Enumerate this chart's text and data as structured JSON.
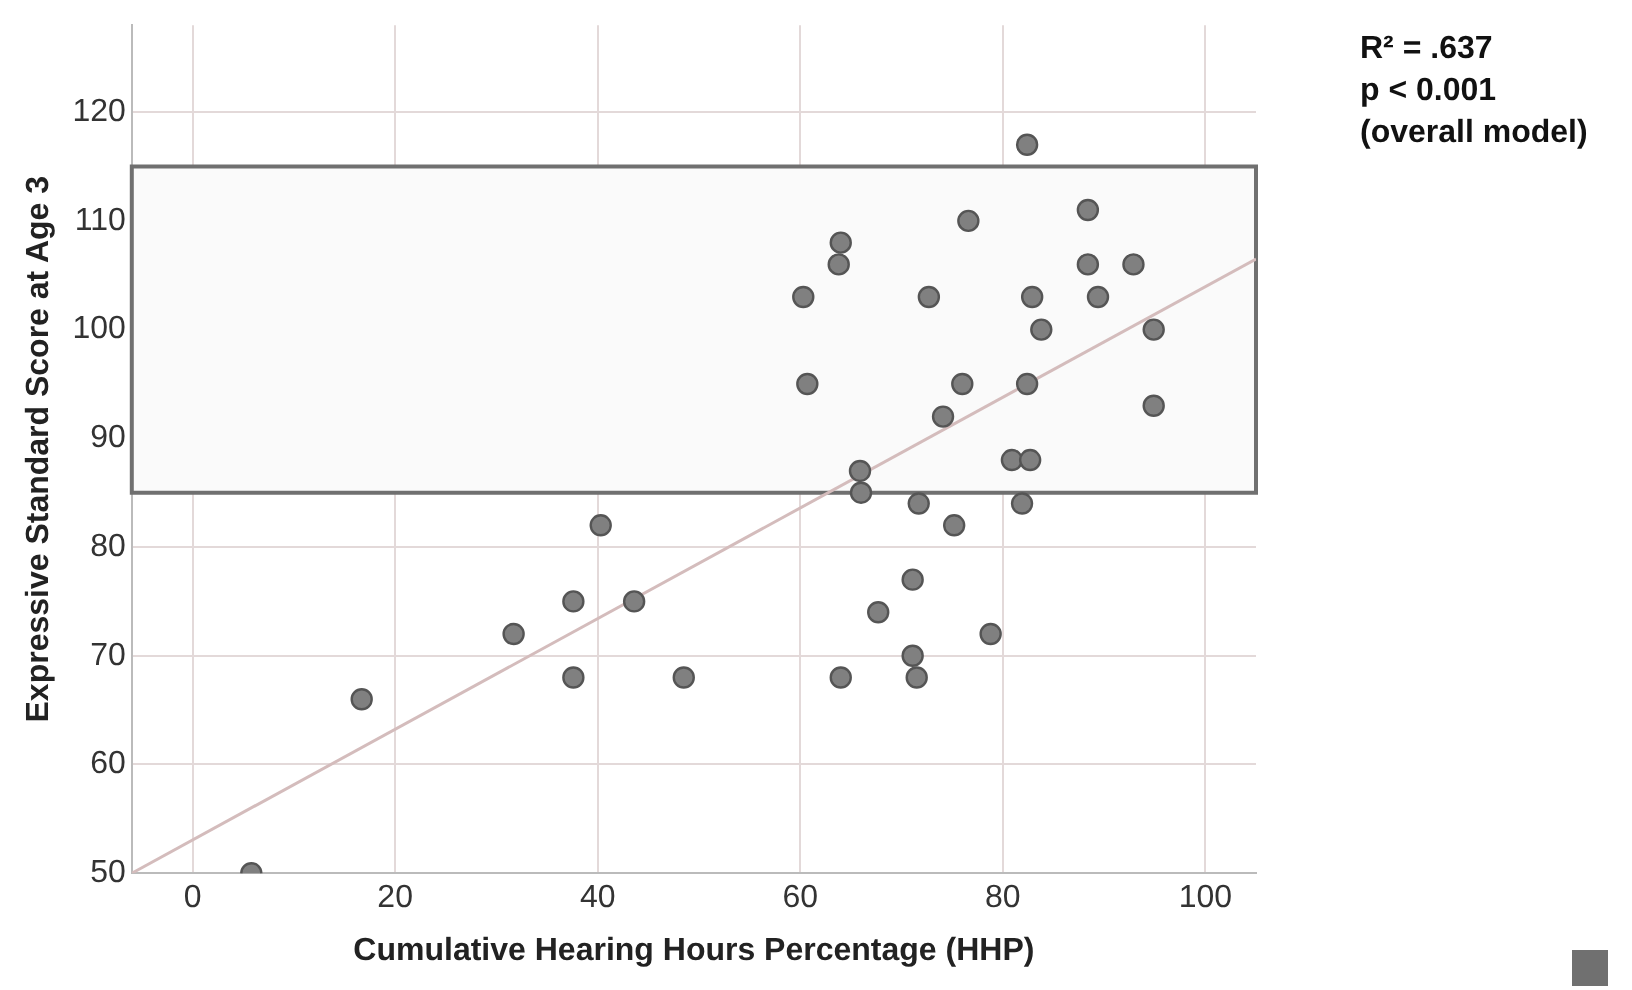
{
  "chart_data": {
    "type": "scatter",
    "xlabel": "Cumulative Hearing Hours Percentage (HHP)",
    "ylabel": "Expressive Standard Score at Age 3",
    "annotations": [
      "R² = .637",
      "p < 0.001",
      "(overall model)"
    ],
    "xlim": [
      -6,
      105
    ],
    "xticks": [
      0,
      20,
      40,
      60,
      80,
      100
    ],
    "ylim": [
      50,
      128
    ],
    "yticks": [
      50,
      60,
      70,
      80,
      90,
      100,
      110,
      120
    ],
    "grid": true,
    "legend": false,
    "marker": "circle",
    "bands": [
      {
        "axis": "y",
        "from": 85,
        "to": 115,
        "color": "#fafafa"
      }
    ],
    "series": [
      {
        "type": "scatter",
        "color": "#808080",
        "x": [
          82.4,
          76.6,
          88.4,
          64.0,
          63.8,
          88.4,
          92.9,
          60.3,
          72.7,
          82.9,
          89.4,
          83.8,
          94.9,
          60.7,
          76.0,
          82.4,
          74.1,
          94.9,
          80.9,
          82.7,
          65.9,
          66.0,
          71.7,
          81.9,
          75.2,
          40.3,
          43.6,
          71.1,
          67.7,
          78.8,
          71.1,
          64.0,
          71.5,
          48.5,
          37.6,
          31.7,
          37.6,
          16.7,
          5.8
        ],
        "values": [
          117,
          110,
          111,
          108,
          106,
          106,
          106,
          103,
          103,
          103,
          103,
          100,
          100,
          95,
          95,
          95,
          92,
          93,
          88,
          88,
          87,
          85,
          84,
          84,
          82,
          82,
          75,
          77,
          74,
          72,
          70,
          68,
          68,
          68,
          75,
          72,
          68,
          66,
          50
        ]
      },
      {
        "type": "line",
        "marker": "none",
        "color": "#d4bcbc",
        "x": [
          -6,
          105
        ],
        "values": [
          50,
          106.5
        ]
      }
    ]
  }
}
